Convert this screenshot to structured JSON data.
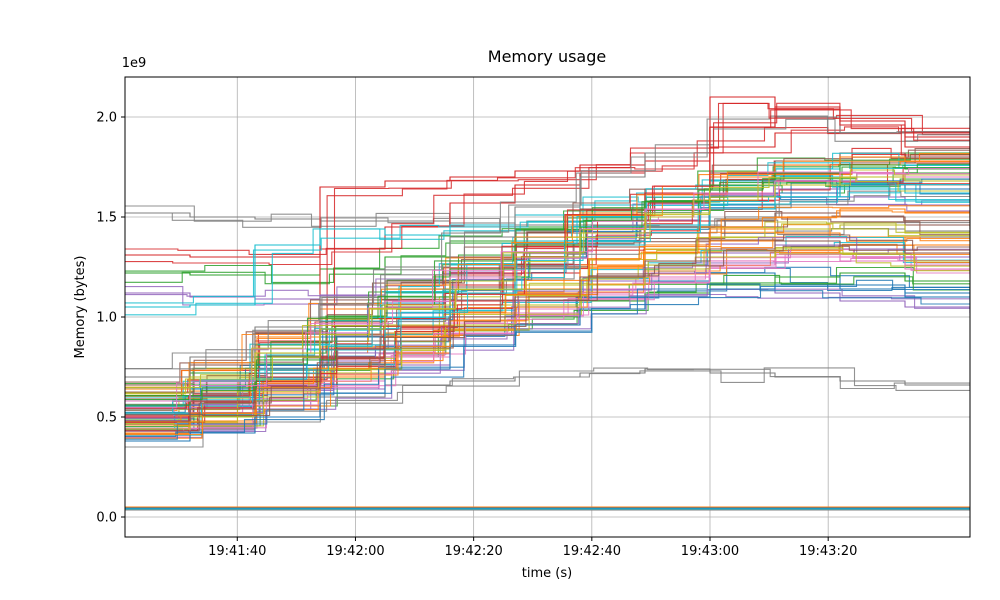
{
  "figure": {
    "title": "Memory usage",
    "xlabel": "time (s)",
    "ylabel": "Memory (bytes)",
    "offset_label": "1e9"
  },
  "style": {
    "background": "#ffffff",
    "grid_color": "#b0b0b0",
    "axis_color": "#000000",
    "line_width": 1.1,
    "density_replicas": 3,
    "jitter": 0.05
  },
  "chart_data": {
    "type": "line",
    "title": "Memory usage",
    "xlabel": "time (s)",
    "ylabel": "Memory (bytes)",
    "y_unit": 1000000000,
    "y_offset_label": "1e9",
    "grid": true,
    "legend": "none",
    "x_range": [
      0,
      143
    ],
    "y_range": [
      -0.1,
      2.2
    ],
    "y_ticks": [
      0.0,
      0.5,
      1.0,
      1.5,
      2.0
    ],
    "x_ticks": [
      {
        "t": 19,
        "label": "19:41:40"
      },
      {
        "t": 39,
        "label": "19:42:00"
      },
      {
        "t": 59,
        "label": "19:42:20"
      },
      {
        "t": 79,
        "label": "19:42:40"
      },
      {
        "t": 99,
        "label": "19:43:00"
      },
      {
        "t": 119,
        "label": "19:43:20"
      }
    ],
    "x": [
      0,
      11,
      22,
      33,
      44,
      55,
      66,
      77,
      88,
      99,
      110,
      121,
      132,
      143
    ],
    "series": [
      {
        "color": "#7f7f7f",
        "values": [
          1.52,
          1.5,
          1.49,
          1.48,
          1.48,
          1.47,
          1.46,
          1.46,
          1.45,
          1.45,
          1.44,
          1.44,
          1.43,
          1.43
        ]
      },
      {
        "color": "#2ca02c",
        "values": [
          1.22,
          1.21,
          1.21,
          1.24,
          1.3,
          1.38,
          1.45,
          1.52,
          1.58,
          1.62,
          1.66,
          1.7,
          1.72,
          1.7
        ]
      },
      {
        "color": "#d62728",
        "values": [
          1.31,
          1.3,
          1.3,
          1.34,
          1.45,
          1.57,
          1.66,
          1.72,
          1.78,
          1.85,
          1.92,
          1.96,
          1.9,
          1.86
        ]
      },
      {
        "color": "#d62728",
        "values": [
          0.55,
          0.62,
          0.72,
          1.65,
          1.68,
          1.7,
          1.73,
          1.76,
          1.82,
          2.1,
          2.04,
          1.96,
          1.92,
          1.96
        ]
      },
      {
        "color": "#9467bd",
        "values": [
          1.12,
          1.1,
          1.09,
          1.11,
          1.16,
          1.22,
          1.32,
          1.42,
          1.52,
          1.6,
          1.64,
          1.6,
          1.56,
          1.52
        ]
      },
      {
        "color": "#17becf",
        "values": [
          1.05,
          1.06,
          1.36,
          1.44,
          1.41,
          1.46,
          1.51,
          1.56,
          1.62,
          1.66,
          1.7,
          1.66,
          1.62,
          1.63
        ]
      },
      {
        "color": "#1f77b4",
        "values": [
          0.48,
          0.55,
          0.66,
          0.78,
          0.88,
          0.95,
          1.02,
          1.1,
          1.18,
          1.22,
          1.2,
          1.16,
          1.12,
          1.1
        ]
      },
      {
        "color": "#ff7f0e",
        "values": [
          0.52,
          0.6,
          0.72,
          0.85,
          0.92,
          1.0,
          1.12,
          1.25,
          1.32,
          1.38,
          1.42,
          1.4,
          1.36,
          1.34
        ]
      },
      {
        "color": "#2ca02c",
        "values": [
          0.44,
          0.5,
          0.58,
          0.7,
          0.82,
          0.92,
          1.0,
          1.08,
          1.12,
          1.16,
          1.2,
          1.22,
          1.18,
          1.16
        ]
      },
      {
        "color": "#d62728",
        "values": [
          0.6,
          0.72,
          0.88,
          1.0,
          1.1,
          1.22,
          1.35,
          1.5,
          1.62,
          1.7,
          1.76,
          1.8,
          1.78,
          1.8
        ]
      },
      {
        "color": "#9467bd",
        "values": [
          0.42,
          0.46,
          0.54,
          0.64,
          0.76,
          0.86,
          0.96,
          1.04,
          1.1,
          1.14,
          1.12,
          1.08,
          1.05,
          1.02
        ]
      },
      {
        "color": "#8c564b",
        "values": [
          0.58,
          0.66,
          0.8,
          0.94,
          1.05,
          1.15,
          1.25,
          1.35,
          1.42,
          1.48,
          1.52,
          1.5,
          1.46,
          1.44
        ]
      },
      {
        "color": "#e377c2",
        "values": [
          0.46,
          0.52,
          0.62,
          0.74,
          0.84,
          0.94,
          1.04,
          1.14,
          1.22,
          1.28,
          1.32,
          1.3,
          1.26,
          1.24
        ]
      },
      {
        "color": "#7f7f7f",
        "values": [
          0.4,
          0.44,
          0.5,
          0.6,
          0.66,
          0.68,
          0.7,
          0.72,
          0.74,
          0.72,
          0.7,
          0.68,
          0.66,
          0.64
        ]
      },
      {
        "color": "#bcbd22",
        "values": [
          0.5,
          0.58,
          0.7,
          0.84,
          0.96,
          1.06,
          1.16,
          1.26,
          1.34,
          1.4,
          1.44,
          1.46,
          1.42,
          1.4
        ]
      },
      {
        "color": "#17becf",
        "values": [
          0.44,
          0.52,
          0.64,
          0.78,
          0.9,
          1.0,
          1.1,
          1.2,
          1.28,
          1.34,
          1.38,
          1.36,
          1.32,
          1.3
        ]
      },
      {
        "color": "#1f77b4",
        "values": [
          0.56,
          0.64,
          0.76,
          0.9,
          1.02,
          1.14,
          1.26,
          1.38,
          1.48,
          1.56,
          1.62,
          1.66,
          1.64,
          1.62
        ]
      },
      {
        "color": "#ff7f0e",
        "values": [
          0.42,
          0.48,
          0.58,
          0.7,
          0.82,
          0.94,
          1.06,
          1.16,
          1.24,
          1.3,
          1.34,
          1.32,
          1.28,
          1.26
        ]
      },
      {
        "color": "#2ca02c",
        "values": [
          0.62,
          0.72,
          0.86,
          1.0,
          1.14,
          1.28,
          1.4,
          1.52,
          1.62,
          1.7,
          1.76,
          1.8,
          1.82,
          1.8
        ]
      },
      {
        "color": "#d62728",
        "values": [
          0.46,
          0.54,
          0.66,
          0.8,
          0.94,
          1.08,
          1.22,
          1.36,
          1.48,
          1.58,
          1.66,
          1.72,
          1.7,
          1.68
        ]
      },
      {
        "color": "#9467bd",
        "values": [
          0.5,
          0.56,
          0.66,
          0.78,
          0.88,
          0.98,
          1.08,
          1.18,
          1.26,
          1.32,
          1.36,
          1.34,
          1.3,
          1.28
        ]
      },
      {
        "color": "#8c564b",
        "values": [
          0.66,
          0.76,
          0.92,
          1.06,
          1.18,
          1.3,
          1.42,
          1.54,
          1.64,
          1.72,
          1.78,
          1.82,
          1.8,
          1.78
        ]
      },
      {
        "color": "#e377c2",
        "values": [
          0.4,
          0.46,
          0.56,
          0.68,
          0.8,
          0.92,
          1.02,
          1.12,
          1.2,
          1.26,
          1.3,
          1.28,
          1.24,
          1.22
        ]
      },
      {
        "color": "#7f7f7f",
        "values": [
          0.54,
          0.62,
          0.74,
          0.88,
          1.0,
          1.12,
          1.24,
          1.36,
          1.46,
          1.54,
          1.6,
          1.64,
          1.62,
          1.6
        ]
      },
      {
        "color": "#bcbd22",
        "values": [
          0.44,
          0.5,
          0.6,
          0.72,
          0.84,
          0.96,
          1.06,
          1.16,
          1.24,
          1.3,
          1.34,
          1.32,
          1.28,
          1.26
        ]
      },
      {
        "color": "#17becf",
        "values": [
          0.6,
          0.7,
          0.84,
          0.98,
          1.12,
          1.26,
          1.38,
          1.5,
          1.6,
          1.68,
          1.74,
          1.78,
          1.76,
          1.74
        ]
      },
      {
        "color": "#1f77b4",
        "values": [
          0.38,
          0.42,
          0.5,
          0.62,
          0.74,
          0.86,
          0.96,
          1.04,
          1.1,
          1.14,
          1.16,
          1.14,
          1.1,
          1.08
        ]
      },
      {
        "color": "#ff7f0e",
        "values": [
          0.64,
          0.74,
          0.9,
          1.04,
          1.16,
          1.28,
          1.4,
          1.52,
          1.62,
          1.7,
          1.76,
          1.8,
          1.78,
          1.76
        ]
      },
      {
        "color": "#7f7f7f",
        "values": [
          0.7,
          0.8,
          0.95,
          1.1,
          1.25,
          1.4,
          1.55,
          1.7,
          1.82,
          1.95,
          2.0,
          1.92,
          1.88,
          1.9
        ]
      },
      {
        "color": "#d62728",
        "values": [
          0.5,
          0.58,
          0.7,
          0.84,
          1.0,
          1.16,
          1.32,
          1.48,
          1.62,
          1.95,
          2.05,
          1.98,
          1.85,
          1.8
        ]
      },
      {
        "color": "#ff7f0e",
        "values": [
          0.46,
          0.52,
          0.62,
          0.76,
          0.9,
          1.02,
          1.14,
          1.26,
          1.36,
          1.44,
          1.5,
          1.54,
          1.52,
          1.5
        ]
      },
      {
        "color": "#17becf",
        "values": [
          0.52,
          0.6,
          0.72,
          0.86,
          1.0,
          1.12,
          1.24,
          1.36,
          1.46,
          1.54,
          1.6,
          1.64,
          1.62,
          1.6
        ]
      },
      {
        "color": "#8c564b",
        "values": [
          0.48,
          0.54,
          0.64,
          0.76,
          0.88,
          1.0,
          1.1,
          1.2,
          1.28,
          1.34,
          1.38,
          1.36,
          1.32,
          1.3
        ]
      },
      {
        "color": "#2ca02c",
        "values": [
          0.56,
          0.66,
          0.8,
          0.96,
          1.1,
          1.24,
          1.36,
          1.48,
          1.58,
          1.66,
          1.72,
          1.76,
          1.74,
          1.72
        ]
      },
      {
        "color": "#e377c2",
        "values": [
          0.58,
          0.68,
          0.82,
          0.96,
          1.08,
          1.2,
          1.32,
          1.44,
          1.54,
          1.62,
          1.68,
          1.72,
          1.7,
          1.68
        ]
      },
      {
        "color": "#bcbd22",
        "values": [
          0.62,
          0.7,
          0.82,
          0.94,
          1.06,
          1.18,
          1.3,
          1.42,
          1.52,
          1.6,
          1.66,
          1.7,
          1.68,
          1.66
        ]
      },
      {
        "color": "#1f77b4",
        "values": [
          0.045,
          0.045,
          0.045,
          0.045,
          0.045,
          0.045,
          0.045,
          0.045,
          0.045,
          0.045,
          0.045,
          0.045,
          0.045,
          0.045
        ]
      },
      {
        "color": "#17becf",
        "values": [
          0.04,
          0.04,
          0.04,
          0.04,
          0.04,
          0.04,
          0.04,
          0.04,
          0.04,
          0.04,
          0.04,
          0.04,
          0.04,
          0.04
        ]
      },
      {
        "color": "#7f7f7f",
        "values": [
          0.035,
          0.035,
          0.035,
          0.035,
          0.035,
          0.035,
          0.035,
          0.035,
          0.035,
          0.035,
          0.035,
          0.035,
          0.035,
          0.035
        ]
      },
      {
        "color": "#ff7f0e",
        "values": [
          0.05,
          0.05,
          0.05,
          0.05,
          0.05,
          0.05,
          0.05,
          0.05,
          0.05,
          0.05,
          0.05,
          0.05,
          0.05,
          0.05
        ]
      }
    ]
  }
}
